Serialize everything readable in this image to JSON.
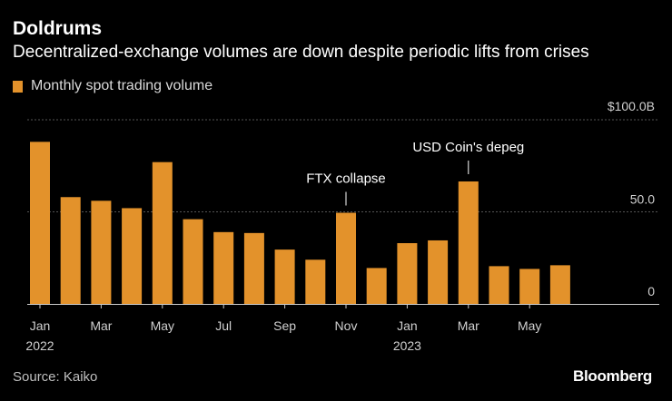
{
  "header": {
    "title": "Doldrums",
    "subtitle": "Decentralized-exchange volumes are down despite periodic lifts from crises"
  },
  "colors": {
    "bar": "#e3922b",
    "grid": "#555555",
    "axis_text": "#d0d0d0",
    "background": "#000000"
  },
  "chart_data": {
    "type": "bar",
    "title": "Doldrums",
    "subtitle": "Decentralized-exchange volumes are down despite periodic lifts from crises",
    "legend": [
      "Monthly spot trading volume"
    ],
    "legend_position": "top-left",
    "x": [
      "2022-01",
      "2022-02",
      "2022-03",
      "2022-04",
      "2022-05",
      "2022-06",
      "2022-07",
      "2022-08",
      "2022-09",
      "2022-10",
      "2022-11",
      "2022-12",
      "2023-01",
      "2023-02",
      "2023-03",
      "2023-04",
      "2023-05",
      "2023-06"
    ],
    "series": [
      {
        "name": "Monthly spot trading volume",
        "values": [
          88,
          58,
          56,
          52,
          77,
          46,
          39,
          38.5,
          29.5,
          24,
          49.5,
          19.5,
          33,
          34.5,
          66.5,
          20.5,
          19,
          21
        ]
      }
    ],
    "x_tick_labels": [
      {
        "index": 0,
        "label": "Jan",
        "year": "2022"
      },
      {
        "index": 2,
        "label": "Mar",
        "year": ""
      },
      {
        "index": 4,
        "label": "May",
        "year": ""
      },
      {
        "index": 6,
        "label": "Jul",
        "year": ""
      },
      {
        "index": 8,
        "label": "Sep",
        "year": ""
      },
      {
        "index": 10,
        "label": "Nov",
        "year": ""
      },
      {
        "index": 12,
        "label": "Jan",
        "year": "2023"
      },
      {
        "index": 14,
        "label": "Mar",
        "year": ""
      },
      {
        "index": 16,
        "label": "May",
        "year": ""
      }
    ],
    "y_ticks": [
      {
        "value": 0,
        "label": "0"
      },
      {
        "value": 50,
        "label": "50.0"
      },
      {
        "value": 100,
        "label": "$100.0B"
      }
    ],
    "ylim": [
      0,
      100
    ],
    "xlabel": "",
    "ylabel": "",
    "grid": true,
    "annotations": [
      {
        "index": 10,
        "text": "FTX collapse"
      },
      {
        "index": 14,
        "text": "USD Coin's depeg"
      }
    ]
  },
  "footer": {
    "source": "Source: Kaiko",
    "brand": "Bloomberg"
  }
}
